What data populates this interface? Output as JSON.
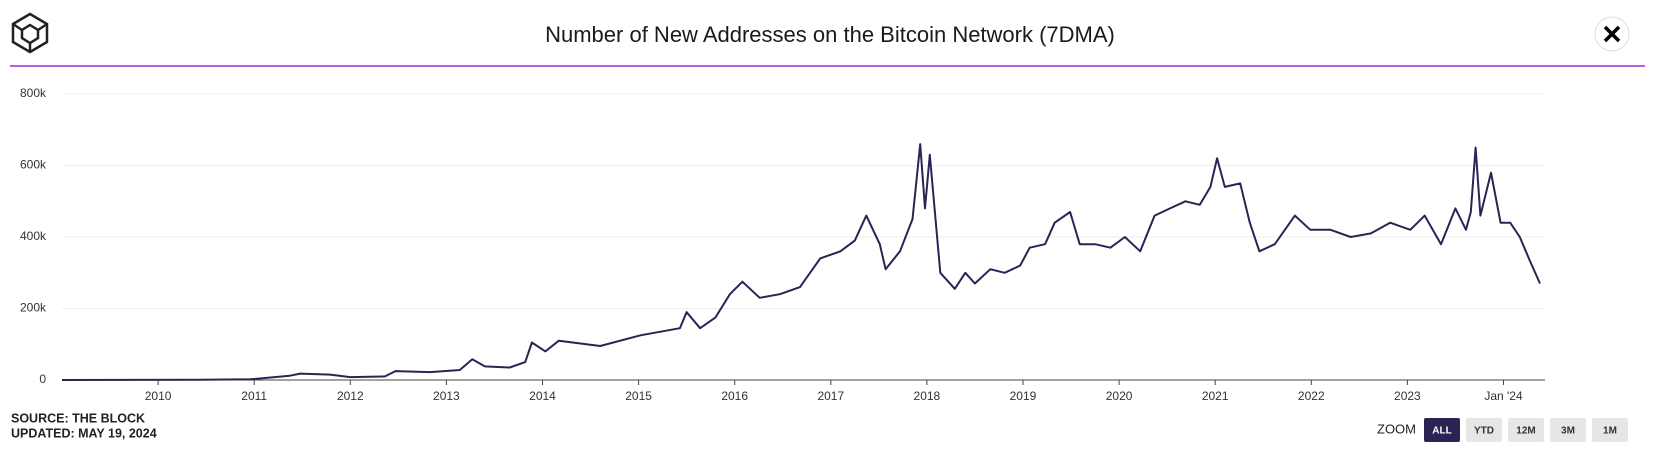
{
  "chart_data": {
    "type": "line",
    "title": "Number of New Addresses on the Bitcoin Network (7DMA)",
    "color": "#2a2455",
    "x": [
      2009.0,
      2010.44,
      2010.96,
      2011.37,
      2011.48,
      2011.79,
      2012.0,
      2012.36,
      2012.47,
      2012.83,
      2013.14,
      2013.27,
      2013.4,
      2013.66,
      2013.82,
      2013.89,
      2014.03,
      2014.17,
      2014.6,
      2015.02,
      2015.43,
      2015.5,
      2015.64,
      2015.8,
      2015.95,
      2016.08,
      2016.26,
      2016.47,
      2016.68,
      2016.89,
      2017.1,
      2017.25,
      2017.37,
      2017.51,
      2017.57,
      2017.72,
      2017.85,
      2017.93,
      2017.98,
      2018.03,
      2018.14,
      2018.29,
      2018.4,
      2018.5,
      2018.66,
      2018.81,
      2018.97,
      2019.07,
      2019.23,
      2019.33,
      2019.49,
      2019.59,
      2019.75,
      2019.91,
      2020.06,
      2020.22,
      2020.37,
      2020.53,
      2020.69,
      2020.84,
      2020.95,
      2021.02,
      2021.1,
      2021.26,
      2021.36,
      2021.46,
      2021.62,
      2021.83,
      2021.99,
      2022.2,
      2022.41,
      2022.62,
      2022.82,
      2023.03,
      2023.18,
      2023.35,
      2023.5,
      2023.61,
      2023.66,
      2023.71,
      2023.76,
      2023.87,
      2023.97,
      2024.07,
      2024.17,
      2024.28,
      2024.38
    ],
    "values": [
      0,
      500,
      2000,
      12000,
      18000,
      15000,
      8000,
      10000,
      25000,
      22000,
      28000,
      58000,
      38000,
      35000,
      50000,
      105000,
      80000,
      110000,
      95000,
      125000,
      145000,
      190000,
      145000,
      175000,
      240000,
      275000,
      230000,
      240000,
      260000,
      340000,
      360000,
      390000,
      460000,
      380000,
      310000,
      360000,
      450000,
      660000,
      480000,
      630000,
      300000,
      255000,
      300000,
      270000,
      310000,
      300000,
      320000,
      370000,
      380000,
      440000,
      470000,
      380000,
      380000,
      370000,
      400000,
      360000,
      460000,
      480000,
      500000,
      490000,
      540000,
      620000,
      540000,
      550000,
      440000,
      360000,
      380000,
      460000,
      420000,
      420000,
      400000,
      410000,
      440000,
      420000,
      460000,
      380000,
      480000,
      420000,
      470000,
      650000,
      460000,
      580000,
      440000,
      440000,
      400000,
      330000,
      270000
    ],
    "xlim": [
      2009.0,
      2024.38
    ],
    "xticks": [
      2010,
      2011,
      2012,
      2013,
      2014,
      2015,
      2016,
      2017,
      2018,
      2019,
      2020,
      2021,
      2022,
      2023,
      {
        "value": 2024,
        "label": "Jan '24"
      }
    ],
    "ylim": [
      0,
      800000
    ],
    "yticks": [
      0,
      {
        "value": 200000,
        "label": "200k"
      },
      {
        "value": 400000,
        "label": "400k"
      },
      {
        "value": 600000,
        "label": "600k"
      },
      {
        "value": 800000,
        "label": "800k"
      }
    ],
    "grid": true
  },
  "footer": {
    "source": "SOURCE: THE BLOCK",
    "updated": "UPDATED: MAY 19, 2024"
  },
  "zoom": {
    "label": "ZOOM",
    "buttons": [
      "ALL",
      "YTD",
      "12M",
      "3M",
      "1M"
    ],
    "active": 0
  }
}
